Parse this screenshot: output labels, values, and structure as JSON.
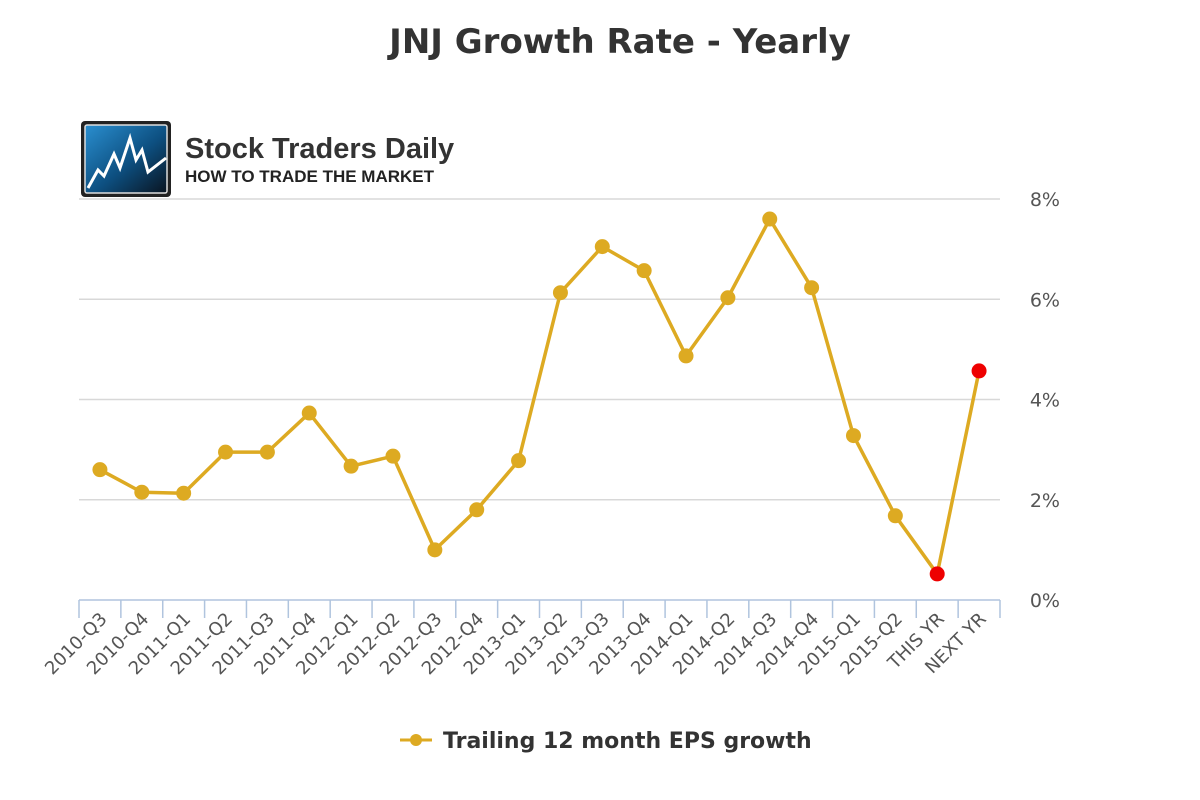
{
  "chart_data": {
    "type": "line",
    "title": "JNJ Growth Rate - Yearly",
    "categories": [
      "2010-Q3",
      "2010-Q4",
      "2011-Q1",
      "2011-Q2",
      "2011-Q3",
      "2011-Q4",
      "2012-Q1",
      "2012-Q2",
      "2012-Q3",
      "2012-Q4",
      "2013-Q1",
      "2013-Q2",
      "2013-Q3",
      "2013-Q4",
      "2014-Q1",
      "2014-Q2",
      "2014-Q3",
      "2014-Q4",
      "2015-Q1",
      "2015-Q2",
      "THIS YR",
      "NEXT YR"
    ],
    "series": [
      {
        "name": "Trailing 12 month EPS growth",
        "color": "#DDAA22",
        "highlight_color": "#EE0000",
        "values": [
          2.6,
          2.15,
          2.13,
          2.95,
          2.95,
          3.73,
          2.67,
          2.87,
          1.0,
          1.8,
          2.78,
          6.13,
          7.05,
          6.57,
          4.87,
          6.03,
          7.6,
          6.23,
          3.28,
          1.68,
          0.52,
          4.57
        ],
        "highlighted": [
          "THIS YR",
          "NEXT YR"
        ]
      }
    ],
    "ylim": [
      0,
      8
    ],
    "yticks": [
      "0%",
      "2%",
      "4%",
      "6%",
      "8%"
    ],
    "ytick_values": [
      0,
      2,
      4,
      6,
      8
    ],
    "y_axis_side": "right",
    "grid": true,
    "legend": "bottom"
  },
  "logo": {
    "name": "Stock Traders Daily",
    "tagline": "HOW TO TRADE THE MARKET"
  }
}
